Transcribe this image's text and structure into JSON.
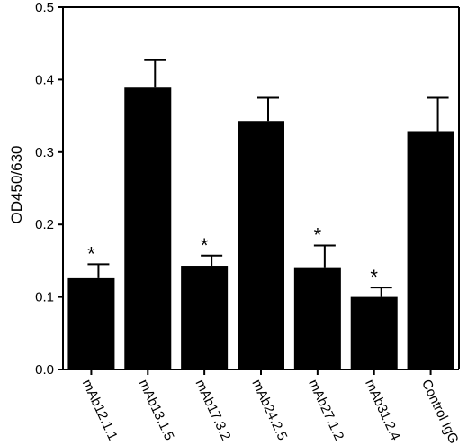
{
  "chart_data": {
    "type": "bar",
    "title": "",
    "xlabel": "",
    "ylabel": "OD450/630",
    "ylim": [
      0,
      0.5
    ],
    "yticks": [
      "0.0",
      "0.1",
      "0.2",
      "0.3",
      "0.4",
      "0.5"
    ],
    "categories": [
      "mAb12.1.1",
      "mAb13.1.5",
      "mAb17.3.2",
      "mAb24.2.5",
      "mAb27.1.2",
      "mAb31.2.4",
      "Control IgG"
    ],
    "values": [
      0.127,
      0.389,
      0.143,
      0.343,
      0.141,
      0.1,
      0.329
    ],
    "errors": [
      0.018,
      0.038,
      0.014,
      0.032,
      0.03,
      0.013,
      0.046
    ],
    "significance": [
      "*",
      "",
      "*",
      "",
      "*",
      "*",
      ""
    ],
    "bar_color": "#000000",
    "grid": false,
    "legend": "none"
  }
}
